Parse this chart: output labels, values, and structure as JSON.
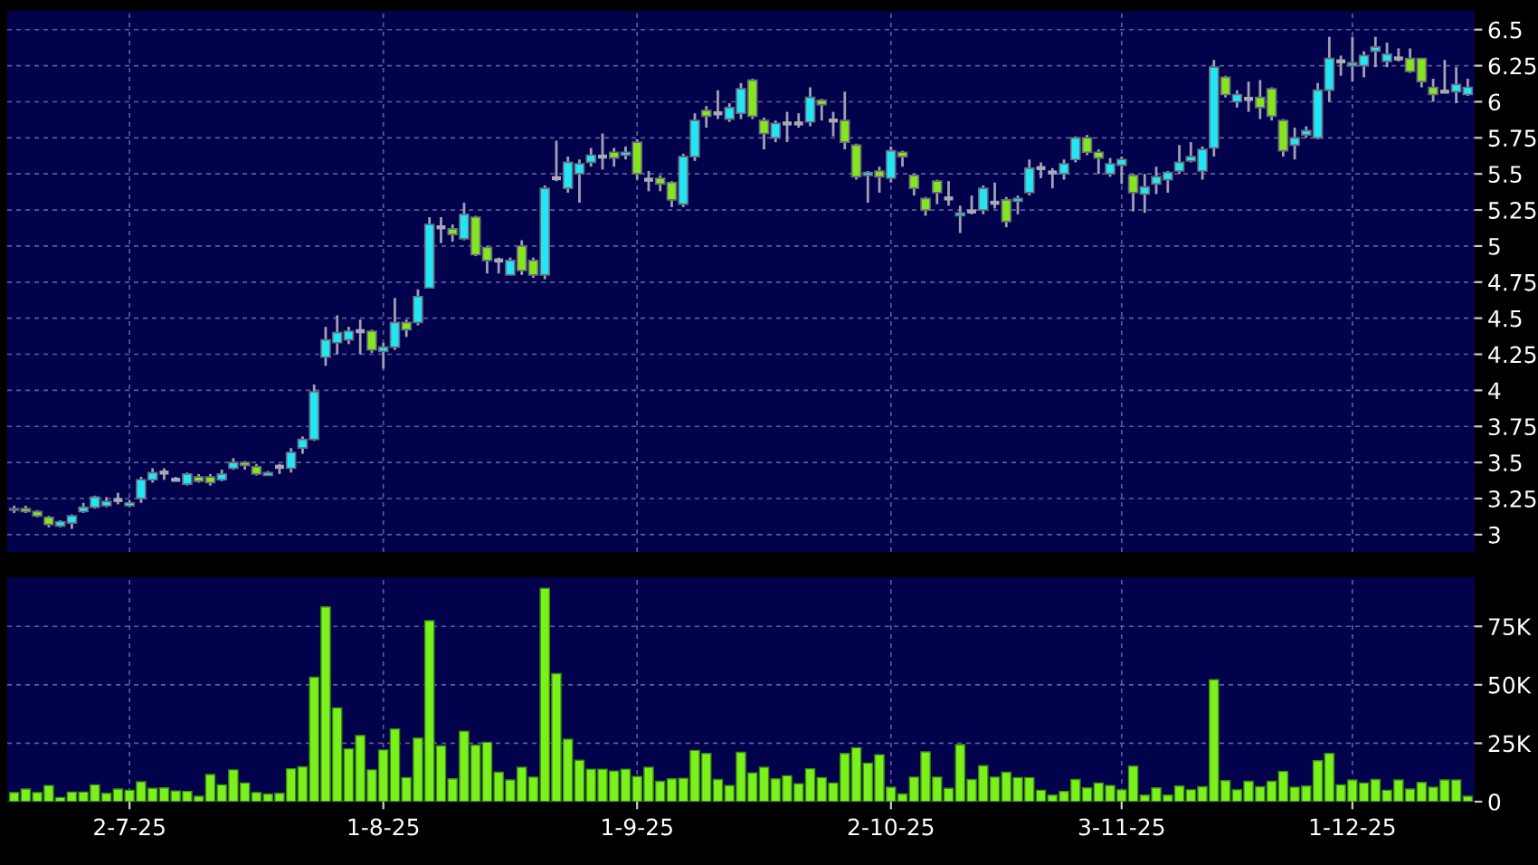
{
  "chart_data": [
    {
      "type": "candlestick",
      "categories": [
        null,
        null,
        null,
        null,
        null,
        null,
        null,
        null,
        null,
        null,
        null,
        null,
        null,
        null,
        null,
        null,
        null,
        null,
        null,
        null,
        null,
        null,
        null,
        null,
        null,
        null,
        null,
        null,
        null,
        null,
        null,
        null,
        null,
        null,
        null,
        null,
        null,
        null,
        null,
        null,
        null,
        null,
        null,
        null,
        null,
        null,
        null,
        null,
        null,
        null,
        null,
        null,
        null,
        null,
        null,
        null,
        null,
        null,
        null,
        null,
        null,
        null,
        null,
        null,
        null,
        null,
        null,
        null,
        null,
        null,
        null,
        null,
        null,
        null,
        null,
        null,
        null,
        null,
        null,
        null,
        null,
        null,
        null,
        null,
        null,
        null,
        null,
        null,
        null,
        null,
        null,
        null,
        null,
        null,
        null,
        null,
        null,
        null,
        null,
        null,
        null,
        null,
        null,
        null,
        null,
        null,
        null,
        null,
        null,
        null,
        null,
        null,
        null,
        null,
        null,
        null,
        null,
        null,
        null,
        null,
        null,
        null,
        null,
        null,
        null,
        null,
        null
      ],
      "ohlc": [
        [
          3.17,
          3.2,
          3.15,
          3.18
        ],
        [
          3.18,
          3.2,
          3.15,
          3.16
        ],
        [
          3.16,
          3.17,
          3.12,
          3.13
        ],
        [
          3.12,
          3.13,
          3.05,
          3.07
        ],
        [
          3.06,
          3.1,
          3.05,
          3.09
        ],
        [
          3.08,
          3.14,
          3.04,
          3.13
        ],
        [
          3.16,
          3.22,
          3.15,
          3.19
        ],
        [
          3.19,
          3.27,
          3.18,
          3.26
        ],
        [
          3.2,
          3.26,
          3.19,
          3.23
        ],
        [
          3.24,
          3.29,
          3.21,
          3.24
        ],
        [
          3.2,
          3.24,
          3.19,
          3.22
        ],
        [
          3.25,
          3.4,
          3.22,
          3.38
        ],
        [
          3.38,
          3.46,
          3.36,
          3.43
        ],
        [
          3.43,
          3.46,
          3.38,
          3.43
        ],
        [
          3.38,
          3.4,
          3.37,
          3.38
        ],
        [
          3.35,
          3.43,
          3.34,
          3.42
        ],
        [
          3.4,
          3.42,
          3.36,
          3.37
        ],
        [
          3.4,
          3.42,
          3.34,
          3.36
        ],
        [
          3.38,
          3.45,
          3.37,
          3.42
        ],
        [
          3.46,
          3.53,
          3.45,
          3.5
        ],
        [
          3.5,
          3.51,
          3.45,
          3.48
        ],
        [
          3.47,
          3.49,
          3.41,
          3.42
        ],
        [
          3.41,
          3.44,
          3.41,
          3.43
        ],
        [
          3.47,
          3.49,
          3.42,
          3.47
        ],
        [
          3.46,
          3.6,
          3.43,
          3.57
        ],
        [
          3.6,
          3.68,
          3.56,
          3.66
        ],
        [
          3.66,
          4.04,
          3.65,
          3.99
        ],
        [
          4.23,
          4.44,
          4.17,
          4.35
        ],
        [
          4.33,
          4.52,
          4.25,
          4.4
        ],
        [
          4.35,
          4.44,
          4.32,
          4.41
        ],
        [
          4.41,
          4.49,
          4.25,
          4.41
        ],
        [
          4.41,
          4.42,
          4.26,
          4.28
        ],
        [
          4.27,
          4.33,
          4.15,
          4.3
        ],
        [
          4.3,
          4.64,
          4.28,
          4.47
        ],
        [
          4.47,
          4.49,
          4.37,
          4.42
        ],
        [
          4.47,
          4.7,
          4.45,
          4.65
        ],
        [
          4.71,
          5.2,
          4.71,
          5.15
        ],
        [
          5.13,
          5.2,
          5.02,
          5.13
        ],
        [
          5.12,
          5.15,
          5.03,
          5.08
        ],
        [
          5.05,
          5.3,
          5.04,
          5.22
        ],
        [
          5.2,
          5.21,
          4.93,
          4.94
        ],
        [
          4.99,
          5.0,
          4.81,
          4.9
        ],
        [
          4.9,
          4.92,
          4.81,
          4.9
        ],
        [
          4.8,
          4.92,
          4.8,
          4.9
        ],
        [
          5.0,
          5.04,
          4.8,
          4.83
        ],
        [
          4.9,
          4.92,
          4.78,
          4.8
        ],
        [
          4.8,
          5.42,
          4.77,
          5.4
        ],
        [
          5.47,
          5.73,
          5.45,
          5.47
        ],
        [
          5.4,
          5.62,
          5.37,
          5.58
        ],
        [
          5.5,
          5.6,
          5.3,
          5.57
        ],
        [
          5.58,
          5.68,
          5.55,
          5.63
        ],
        [
          5.62,
          5.78,
          5.53,
          5.62
        ],
        [
          5.65,
          5.68,
          5.55,
          5.61
        ],
        [
          5.63,
          5.69,
          5.6,
          5.65
        ],
        [
          5.72,
          5.74,
          5.46,
          5.5
        ],
        [
          5.46,
          5.52,
          5.38,
          5.46
        ],
        [
          5.47,
          5.49,
          5.38,
          5.43
        ],
        [
          5.44,
          5.45,
          5.27,
          5.32
        ],
        [
          5.29,
          5.64,
          5.27,
          5.62
        ],
        [
          5.62,
          5.92,
          5.59,
          5.87
        ],
        [
          5.94,
          5.97,
          5.82,
          5.9
        ],
        [
          5.92,
          6.08,
          5.88,
          5.92
        ],
        [
          5.88,
          5.99,
          5.86,
          5.96
        ],
        [
          5.92,
          6.13,
          5.88,
          6.09
        ],
        [
          6.15,
          6.16,
          5.88,
          5.9
        ],
        [
          5.87,
          5.89,
          5.67,
          5.78
        ],
        [
          5.75,
          5.87,
          5.72,
          5.85
        ],
        [
          5.85,
          5.93,
          5.72,
          5.85
        ],
        [
          5.85,
          5.92,
          5.82,
          5.85
        ],
        [
          5.86,
          6.1,
          5.83,
          6.03
        ],
        [
          6.01,
          6.02,
          5.87,
          5.98
        ],
        [
          5.87,
          5.93,
          5.76,
          5.87
        ],
        [
          5.87,
          6.07,
          5.67,
          5.72
        ],
        [
          5.7,
          5.71,
          5.46,
          5.48
        ],
        [
          5.49,
          5.52,
          5.3,
          5.51
        ],
        [
          5.52,
          5.55,
          5.37,
          5.48
        ],
        [
          5.47,
          5.69,
          5.44,
          5.66
        ],
        [
          5.65,
          5.66,
          5.55,
          5.62
        ],
        [
          5.49,
          5.5,
          5.35,
          5.4
        ],
        [
          5.33,
          5.34,
          5.21,
          5.25
        ],
        [
          5.45,
          5.46,
          5.29,
          5.37
        ],
        [
          5.33,
          5.45,
          5.28,
          5.33
        ],
        [
          5.21,
          5.28,
          5.09,
          5.23
        ],
        [
          5.24,
          5.35,
          5.22,
          5.24
        ],
        [
          5.25,
          5.42,
          5.22,
          5.4
        ],
        [
          5.3,
          5.44,
          5.26,
          5.3
        ],
        [
          5.32,
          5.34,
          5.13,
          5.17
        ],
        [
          5.31,
          5.35,
          5.22,
          5.33
        ],
        [
          5.37,
          5.6,
          5.35,
          5.54
        ],
        [
          5.54,
          5.58,
          5.47,
          5.54
        ],
        [
          5.51,
          5.54,
          5.4,
          5.51
        ],
        [
          5.5,
          5.6,
          5.46,
          5.57
        ],
        [
          5.6,
          5.76,
          5.58,
          5.75
        ],
        [
          5.75,
          5.77,
          5.63,
          5.65
        ],
        [
          5.65,
          5.67,
          5.5,
          5.61
        ],
        [
          5.5,
          5.61,
          5.48,
          5.57
        ],
        [
          5.56,
          5.62,
          5.43,
          5.6
        ],
        [
          5.49,
          5.5,
          5.24,
          5.37
        ],
        [
          5.36,
          5.5,
          5.23,
          5.41
        ],
        [
          5.43,
          5.55,
          5.36,
          5.48
        ],
        [
          5.46,
          5.52,
          5.37,
          5.51
        ],
        [
          5.52,
          5.7,
          5.5,
          5.58
        ],
        [
          5.59,
          5.72,
          5.58,
          5.62
        ],
        [
          5.52,
          5.69,
          5.46,
          5.67
        ],
        [
          5.68,
          6.29,
          5.62,
          6.24
        ],
        [
          6.17,
          6.18,
          6.03,
          6.05
        ],
        [
          6.0,
          6.08,
          5.96,
          6.05
        ],
        [
          6.02,
          6.14,
          5.93,
          6.02
        ],
        [
          6.03,
          6.15,
          5.88,
          5.96
        ],
        [
          6.09,
          6.1,
          5.87,
          5.9
        ],
        [
          5.87,
          5.88,
          5.62,
          5.66
        ],
        [
          5.7,
          5.82,
          5.6,
          5.75
        ],
        [
          5.77,
          5.83,
          5.75,
          5.8
        ],
        [
          5.75,
          6.13,
          5.74,
          6.08
        ],
        [
          6.08,
          6.45,
          6.0,
          6.3
        ],
        [
          6.28,
          6.32,
          6.18,
          6.28
        ],
        [
          6.25,
          6.45,
          6.14,
          6.27
        ],
        [
          6.25,
          6.35,
          6.17,
          6.32
        ],
        [
          6.35,
          6.45,
          6.24,
          6.38
        ],
        [
          6.28,
          6.41,
          6.24,
          6.33
        ],
        [
          6.3,
          6.37,
          6.28,
          6.3
        ],
        [
          6.3,
          6.37,
          6.2,
          6.21
        ],
        [
          6.3,
          6.3,
          6.1,
          6.14
        ],
        [
          6.1,
          6.16,
          6.0,
          6.05
        ],
        [
          6.07,
          6.29,
          6.06,
          6.07
        ],
        [
          6.07,
          6.24,
          5.99,
          6.12
        ],
        [
          6.05,
          6.16,
          6.04,
          6.1
        ]
      ],
      "colors": [
        "#22e6f5",
        "#84e61e",
        "#84e61e",
        "#84e61e",
        "#22e6f5",
        "#22e6f5",
        "#22e6f5",
        "#22e6f5",
        "#22e6f5",
        "#a8a8b8",
        "#22e6f5",
        "#22e6f5",
        "#22e6f5",
        "#a8a8b8",
        "#a8a8b8",
        "#22e6f5",
        "#84e61e",
        "#84e61e",
        "#22e6f5",
        "#22e6f5",
        "#84e61e",
        "#84e61e",
        "#22e6f5",
        "#a8a8b8",
        "#22e6f5",
        "#22e6f5",
        "#22e6f5",
        "#22e6f5",
        "#22e6f5",
        "#22e6f5",
        "#a8a8b8",
        "#84e61e",
        "#22e6f5",
        "#22e6f5",
        "#84e61e",
        "#22e6f5",
        "#22e6f5",
        "#a8a8b8",
        "#84e61e",
        "#22e6f5",
        "#84e61e",
        "#84e61e",
        "#a8a8b8",
        "#22e6f5",
        "#84e61e",
        "#84e61e",
        "#22e6f5",
        "#a8a8b8",
        "#22e6f5",
        "#22e6f5",
        "#22e6f5",
        "#a8a8b8",
        "#84e61e",
        "#22e6f5",
        "#84e61e",
        "#a8a8b8",
        "#84e61e",
        "#84e61e",
        "#22e6f5",
        "#22e6f5",
        "#84e61e",
        "#a8a8b8",
        "#22e6f5",
        "#22e6f5",
        "#84e61e",
        "#84e61e",
        "#22e6f5",
        "#a8a8b8",
        "#a8a8b8",
        "#22e6f5",
        "#84e61e",
        "#a8a8b8",
        "#84e61e",
        "#84e61e",
        "#22e6f5",
        "#84e61e",
        "#22e6f5",
        "#84e61e",
        "#84e61e",
        "#84e61e",
        "#84e61e",
        "#a8a8b8",
        "#22e6f5",
        "#a8a8b8",
        "#22e6f5",
        "#a8a8b8",
        "#84e61e",
        "#22e6f5",
        "#22e6f5",
        "#a8a8b8",
        "#a8a8b8",
        "#22e6f5",
        "#22e6f5",
        "#84e61e",
        "#84e61e",
        "#22e6f5",
        "#22e6f5",
        "#84e61e",
        "#22e6f5",
        "#22e6f5",
        "#22e6f5",
        "#22e6f5",
        "#22e6f5",
        "#22e6f5",
        "#22e6f5",
        "#84e61e",
        "#22e6f5",
        "#a8a8b8",
        "#84e61e",
        "#84e61e",
        "#84e61e",
        "#22e6f5",
        "#22e6f5",
        "#22e6f5",
        "#22e6f5",
        "#a8a8b8",
        "#22e6f5",
        "#22e6f5",
        "#22e6f5",
        "#22e6f5",
        "#a8a8b8",
        "#84e61e",
        "#84e61e",
        "#84e61e",
        "#a8a8b8",
        "#22e6f5",
        "#22e6f5"
      ],
      "ylim": [
        2.88,
        6.63
      ],
      "yticks": [
        3,
        3.25,
        3.5,
        3.75,
        4,
        4.25,
        4.5,
        4.75,
        5,
        5.25,
        5.5,
        5.75,
        6,
        6.25,
        6.5
      ],
      "grid": true,
      "tick_labels": "y"
    },
    {
      "type": "bar",
      "categories": [
        null,
        null,
        null,
        null,
        null,
        null,
        null,
        null,
        null,
        null,
        "2-7-25",
        null,
        null,
        null,
        null,
        null,
        null,
        null,
        null,
        null,
        null,
        null,
        null,
        null,
        null,
        null,
        null,
        null,
        null,
        null,
        null,
        null,
        "1-8-25",
        null,
        null,
        null,
        null,
        null,
        null,
        null,
        null,
        null,
        null,
        null,
        null,
        null,
        null,
        null,
        null,
        null,
        null,
        null,
        null,
        null,
        "1-9-25",
        null,
        null,
        null,
        null,
        null,
        null,
        null,
        null,
        null,
        null,
        null,
        null,
        null,
        null,
        null,
        null,
        null,
        null,
        null,
        null,
        null,
        "2-10-25",
        null,
        null,
        null,
        null,
        null,
        null,
        null,
        null,
        null,
        null,
        null,
        null,
        null,
        null,
        null,
        null,
        null,
        null,
        null,
        "3-11-25",
        null,
        null,
        null,
        null,
        null,
        null,
        null,
        null,
        null,
        null,
        null,
        null,
        null,
        null,
        null,
        null,
        null,
        null,
        null,
        "1-12-25",
        null,
        null,
        null,
        null,
        null,
        null,
        null,
        null,
        null,
        null
      ],
      "values": [
        3900,
        5400,
        3900,
        6900,
        1800,
        4100,
        4100,
        7200,
        3600,
        5400,
        4900,
        8500,
        5700,
        5900,
        4600,
        4400,
        2300,
        11600,
        7200,
        13600,
        8000,
        3900,
        3300,
        3600,
        14100,
        14900,
        53200,
        83300,
        40100,
        22600,
        28300,
        13600,
        22100,
        31100,
        10300,
        27200,
        77400,
        23900,
        9800,
        30100,
        24200,
        25400,
        12600,
        9300,
        14700,
        10500,
        91300,
        54800,
        26700,
        17700,
        13900,
        13900,
        13100,
        13900,
        10800,
        14700,
        8700,
        9800,
        10000,
        21900,
        20600,
        9500,
        6900,
        21100,
        12300,
        14700,
        9800,
        11100,
        7700,
        14100,
        10300,
        8000,
        20600,
        23100,
        16500,
        20100,
        6200,
        3300,
        10500,
        21300,
        10500,
        5700,
        24400,
        9500,
        15400,
        10500,
        12600,
        10300,
        10300,
        4900,
        2800,
        4400,
        9500,
        5900,
        8000,
        6900,
        5100,
        15200,
        2800,
        5900,
        2800,
        6700,
        5100,
        6400,
        52200,
        9000,
        5100,
        8700,
        6400,
        8700,
        12900,
        6200,
        6700,
        17500,
        20600,
        7200,
        9300,
        8000,
        9500,
        4900,
        9300,
        5400,
        8200,
        6200,
        9300,
        9300,
        2300
      ],
      "color": "#7cf01c",
      "ylim": [
        0,
        96000
      ],
      "yticks": [
        0,
        {
          "value": 25000,
          "label": "25K"
        },
        {
          "value": 50000,
          "label": "50K"
        },
        {
          "value": 75000,
          "label": "75K"
        }
      ],
      "grid": true
    }
  ]
}
